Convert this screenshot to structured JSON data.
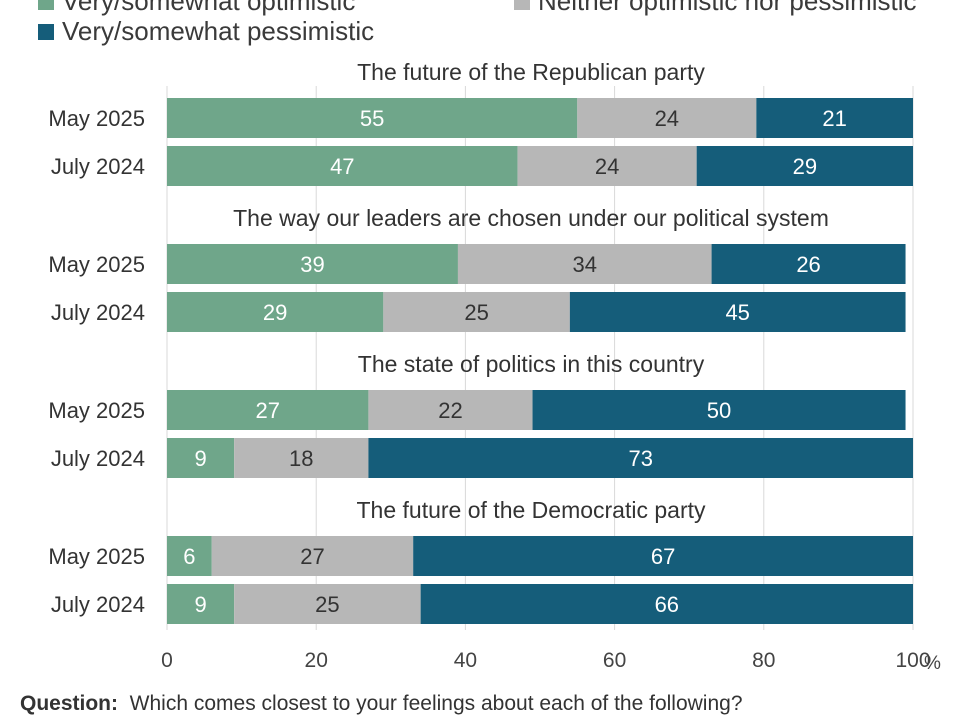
{
  "chart_data": {
    "type": "bar",
    "orientation": "horizontal-stacked",
    "legend": {
      "placement": "top",
      "entries": [
        {
          "name": "Very/somewhat optimistic",
          "color": "#6fa68a"
        },
        {
          "name": "Neither optimistic nor pessimistic",
          "color": "#b7b7b7"
        },
        {
          "name": "Very/somewhat pessimistic",
          "color": "#155d7a"
        }
      ]
    },
    "xlim": [
      0,
      100
    ],
    "xticks": [
      "0",
      "20",
      "40",
      "60",
      "80",
      "100"
    ],
    "xunit": "%",
    "grid": true,
    "groups": [
      {
        "title": "The future of the Republican party",
        "rows": [
          {
            "label": "May 2025",
            "values": [
              55,
              24,
              21
            ]
          },
          {
            "label": "July 2024",
            "values": [
              47,
              24,
              29
            ]
          }
        ]
      },
      {
        "title": "The way our leaders are chosen under our political system",
        "rows": [
          {
            "label": "May 2025",
            "values": [
              39,
              34,
              26
            ]
          },
          {
            "label": "July 2024",
            "values": [
              29,
              25,
              45
            ]
          }
        ]
      },
      {
        "title": "The state of politics in this country",
        "rows": [
          {
            "label": "May 2025",
            "values": [
              27,
              22,
              50
            ]
          },
          {
            "label": "July 2024",
            "values": [
              9,
              18,
              73
            ]
          }
        ]
      },
      {
        "title": "The future of the Democratic party",
        "rows": [
          {
            "label": "May 2025",
            "values": [
              6,
              27,
              67
            ]
          },
          {
            "label": "July 2024",
            "values": [
              9,
              25,
              66
            ]
          }
        ]
      }
    ]
  },
  "footer": {
    "label": "Question:",
    "text": "Which comes closest to your feelings about each of the following?"
  }
}
